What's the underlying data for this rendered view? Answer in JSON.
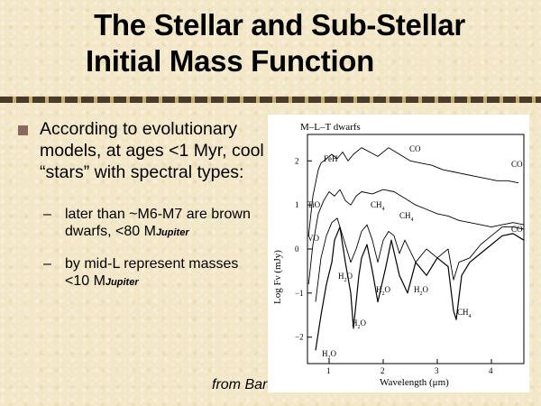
{
  "slide": {
    "title_line1": "The Stellar and Sub-Stellar",
    "title_line2": "Initial Mass Function",
    "bullet_text": "According to evolutionary models, at ages <1 Myr, cool “stars” with spectral types:",
    "sub_bullets": [
      {
        "dash": "–",
        "text": "later than ~M6-M7 are brown dwarfs, <80 M",
        "subscript": "Jupiter"
      },
      {
        "dash": "–",
        "text": "by mid-L represent masses <10 M",
        "subscript": "Jupiter"
      }
    ],
    "credit": "from Baraffe"
  },
  "colors": {
    "background": "#f3e7c8",
    "bullet": "#8a6a5e",
    "divider_dark": "#4a3a2a",
    "divider_light": "#c8ab6e"
  },
  "figure": {
    "title": "M–L–T dwarfs",
    "ylabel": "Log Fν (mJy)",
    "xlabel": "Wavelength (μm)",
    "y_ticks": [
      "2",
      "1",
      "0",
      "−1",
      "−2"
    ],
    "x_ticks": [
      "1",
      "2",
      "3",
      "4"
    ],
    "labels": {
      "feh": "FeH",
      "co_top": "CO",
      "co_right_top": "CO",
      "co_right_bottom": "CO",
      "tio": "TiO",
      "vo": "VO",
      "ch4_a": "CH",
      "ch4_b": "CH",
      "ch4_c": "CH",
      "h2o_a": "H",
      "h2o_b": "H",
      "h2o_c": "H",
      "h2o_d": "H",
      "h2o_e": "H"
    }
  },
  "chart_data": {
    "type": "line",
    "title": "M–L–T dwarfs",
    "xlabel": "Wavelength (μm)",
    "ylabel": "Log Fν (mJy)",
    "xlim": [
      0.6,
      4.6
    ],
    "ylim": [
      -2.6,
      2.6
    ],
    "series": [
      {
        "x": [
          0.62,
          0.7,
          0.8,
          0.85,
          0.95,
          1.05,
          1.15,
          1.25,
          1.35,
          1.45,
          1.6,
          1.75,
          1.9,
          2.1,
          2.3,
          2.5,
          2.7,
          2.9,
          3.1,
          3.3,
          3.5,
          3.7,
          3.9,
          4.1,
          4.3,
          4.5
        ],
        "y": [
          0.3,
          1.2,
          1.8,
          1.95,
          2.05,
          2.15,
          2.05,
          2.2,
          2.0,
          2.15,
          2.3,
          2.2,
          2.1,
          2.3,
          2.15,
          2.0,
          1.95,
          1.9,
          1.8,
          1.75,
          1.7,
          1.65,
          1.6,
          1.55,
          1.55,
          1.5
        ]
      },
      {
        "x": [
          0.62,
          0.7,
          0.8,
          0.9,
          1.0,
          1.1,
          1.2,
          1.3,
          1.4,
          1.5,
          1.6,
          1.8,
          2.0,
          2.2,
          2.4,
          2.6,
          2.8,
          3.0,
          3.2,
          3.4,
          3.6,
          3.8,
          4.0,
          4.2,
          4.4,
          4.6
        ],
        "y": [
          -0.8,
          0.1,
          0.8,
          1.1,
          1.3,
          1.2,
          1.35,
          1.1,
          1.0,
          1.2,
          1.3,
          1.25,
          1.35,
          1.3,
          1.15,
          1.0,
          0.9,
          0.8,
          0.75,
          0.65,
          0.6,
          0.55,
          0.5,
          0.55,
          0.6,
          0.55
        ]
      },
      {
        "x": [
          0.75,
          0.85,
          0.95,
          1.05,
          1.15,
          1.2,
          1.3,
          1.4,
          1.5,
          1.6,
          1.7,
          1.8,
          1.9,
          2.0,
          2.1,
          2.2,
          2.3,
          2.4,
          2.6,
          2.8,
          3.0,
          3.2,
          3.3,
          3.4,
          3.6,
          3.8,
          4.0,
          4.2,
          4.4,
          4.6
        ],
        "y": [
          -1.2,
          -0.2,
          0.3,
          0.6,
          0.7,
          0.5,
          0.1,
          -0.3,
          0.0,
          0.4,
          0.55,
          0.2,
          -0.3,
          0.2,
          0.4,
          0.3,
          -0.1,
          0.2,
          -0.3,
          0.0,
          -0.2,
          0.0,
          -0.7,
          -0.3,
          -0.2,
          0.1,
          0.3,
          0.5,
          0.5,
          0.45
        ]
      },
      {
        "x": [
          0.75,
          0.85,
          0.95,
          1.05,
          1.1,
          1.2,
          1.3,
          1.4,
          1.45,
          1.55,
          1.6,
          1.7,
          1.8,
          1.9,
          2.05,
          2.15,
          2.3,
          2.45,
          2.6,
          2.8,
          3.0,
          3.2,
          3.3,
          3.35,
          3.45,
          3.6,
          3.8,
          4.0,
          4.2,
          4.4,
          4.6
        ],
        "y": [
          -2.3,
          -1.5,
          -0.8,
          -0.3,
          0.2,
          0.5,
          -0.3,
          -1.0,
          -1.8,
          -0.6,
          -0.2,
          0.1,
          -0.5,
          -1.2,
          -0.4,
          0.2,
          -0.6,
          -1.0,
          -0.3,
          -0.6,
          -0.2,
          -0.4,
          -1.4,
          -1.6,
          -0.6,
          -0.3,
          -0.1,
          0.1,
          0.3,
          0.35,
          0.2
        ]
      }
    ]
  }
}
